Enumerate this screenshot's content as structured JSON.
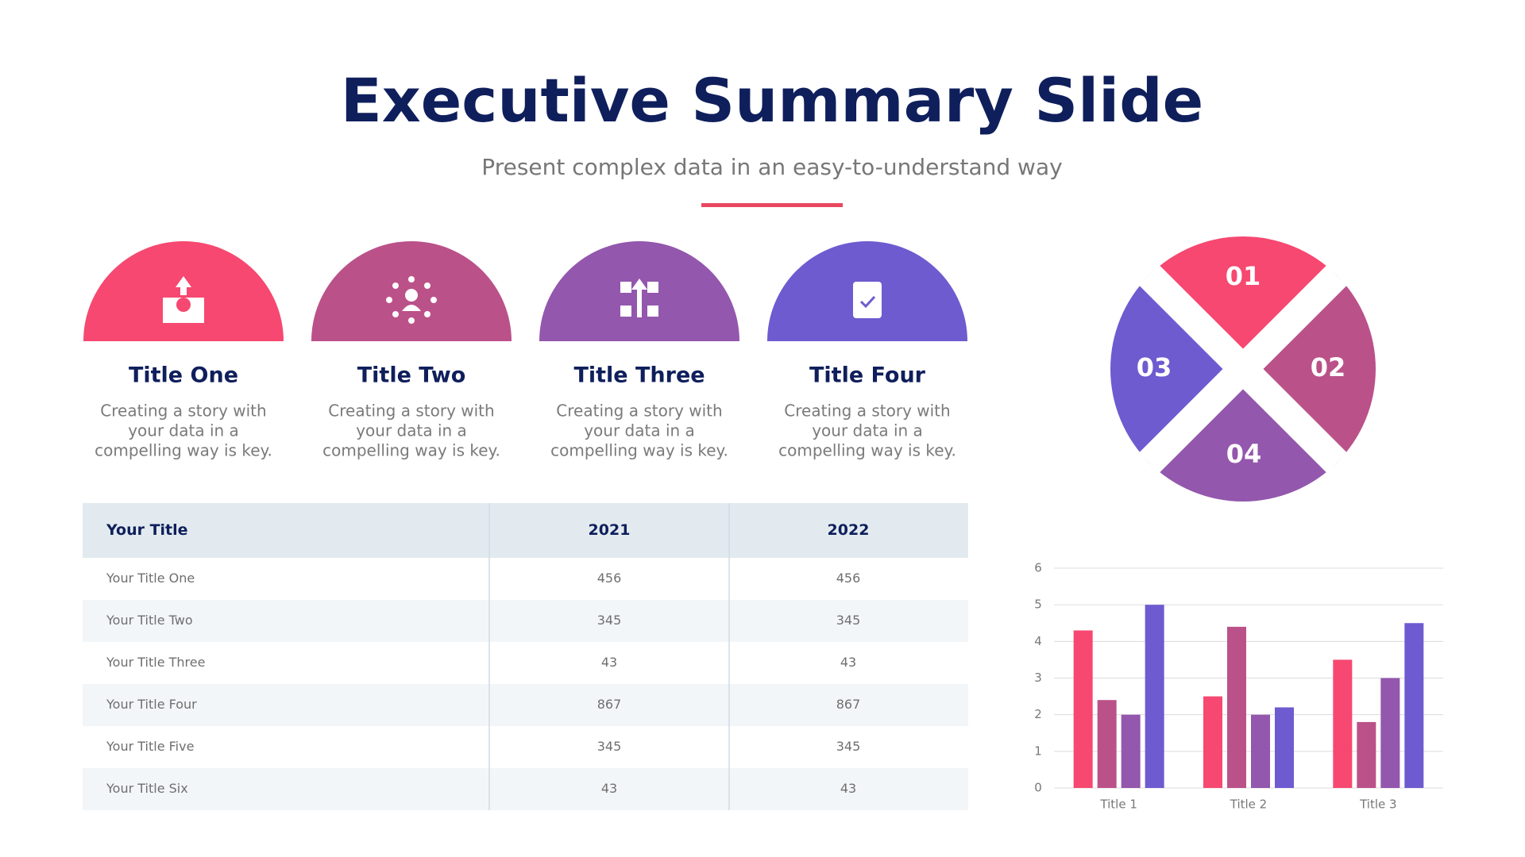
{
  "header": {
    "title": "Executive Summary Slide",
    "subtitle": "Present complex data in an easy-to-understand way"
  },
  "cards": [
    {
      "title": "Title One",
      "text": [
        "Creating a story with",
        "your data in a",
        "compelling way is key."
      ],
      "color": "#f64870"
    },
    {
      "title": "Title Two",
      "text": [
        "Creating a story with",
        "your data in a",
        "compelling way is key."
      ],
      "color": "#bb5189"
    },
    {
      "title": "Title Three",
      "text": [
        "Creating a story with",
        "your data in a",
        "compelling way is key."
      ],
      "color": "#9357ad"
    },
    {
      "title": "Title Four",
      "text": [
        "Creating a story with",
        "your data in a",
        "compelling way is key."
      ],
      "color": "#6e5bd0"
    }
  ],
  "wheel": {
    "segments": [
      {
        "label": "01",
        "color": "#f64870"
      },
      {
        "label": "02",
        "color": "#bb5189"
      },
      {
        "label": "03",
        "color": "#6e5bd0"
      },
      {
        "label": "04",
        "color": "#9357ad"
      }
    ]
  },
  "table": {
    "header": [
      "Your Title",
      "2021",
      "2022"
    ],
    "rows": [
      [
        "Your Title One",
        456,
        456
      ],
      [
        "Your Title Two",
        345,
        345
      ],
      [
        "Your Title Three",
        43,
        43
      ],
      [
        "Your Title Four",
        867,
        867
      ],
      [
        "Your Title Five",
        345,
        345
      ],
      [
        "Your Title Six",
        43,
        43
      ]
    ]
  },
  "chart_data": {
    "type": "bar",
    "categories": [
      "Title 1",
      "Title 2",
      "Title 3"
    ],
    "series": [
      {
        "color": "#f64870",
        "values": [
          4.3,
          2.5,
          3.5
        ]
      },
      {
        "color": "#bb5189",
        "values": [
          2.4,
          4.4,
          1.8
        ]
      },
      {
        "color": "#9357ad",
        "values": [
          2.0,
          2.0,
          3.0
        ]
      },
      {
        "color": "#6e5bd0",
        "values": [
          5.0,
          2.2,
          4.5
        ]
      }
    ],
    "ylim": [
      0,
      6
    ],
    "yticks": [
      0,
      1,
      2,
      3,
      4,
      5,
      6
    ],
    "grid": true
  }
}
